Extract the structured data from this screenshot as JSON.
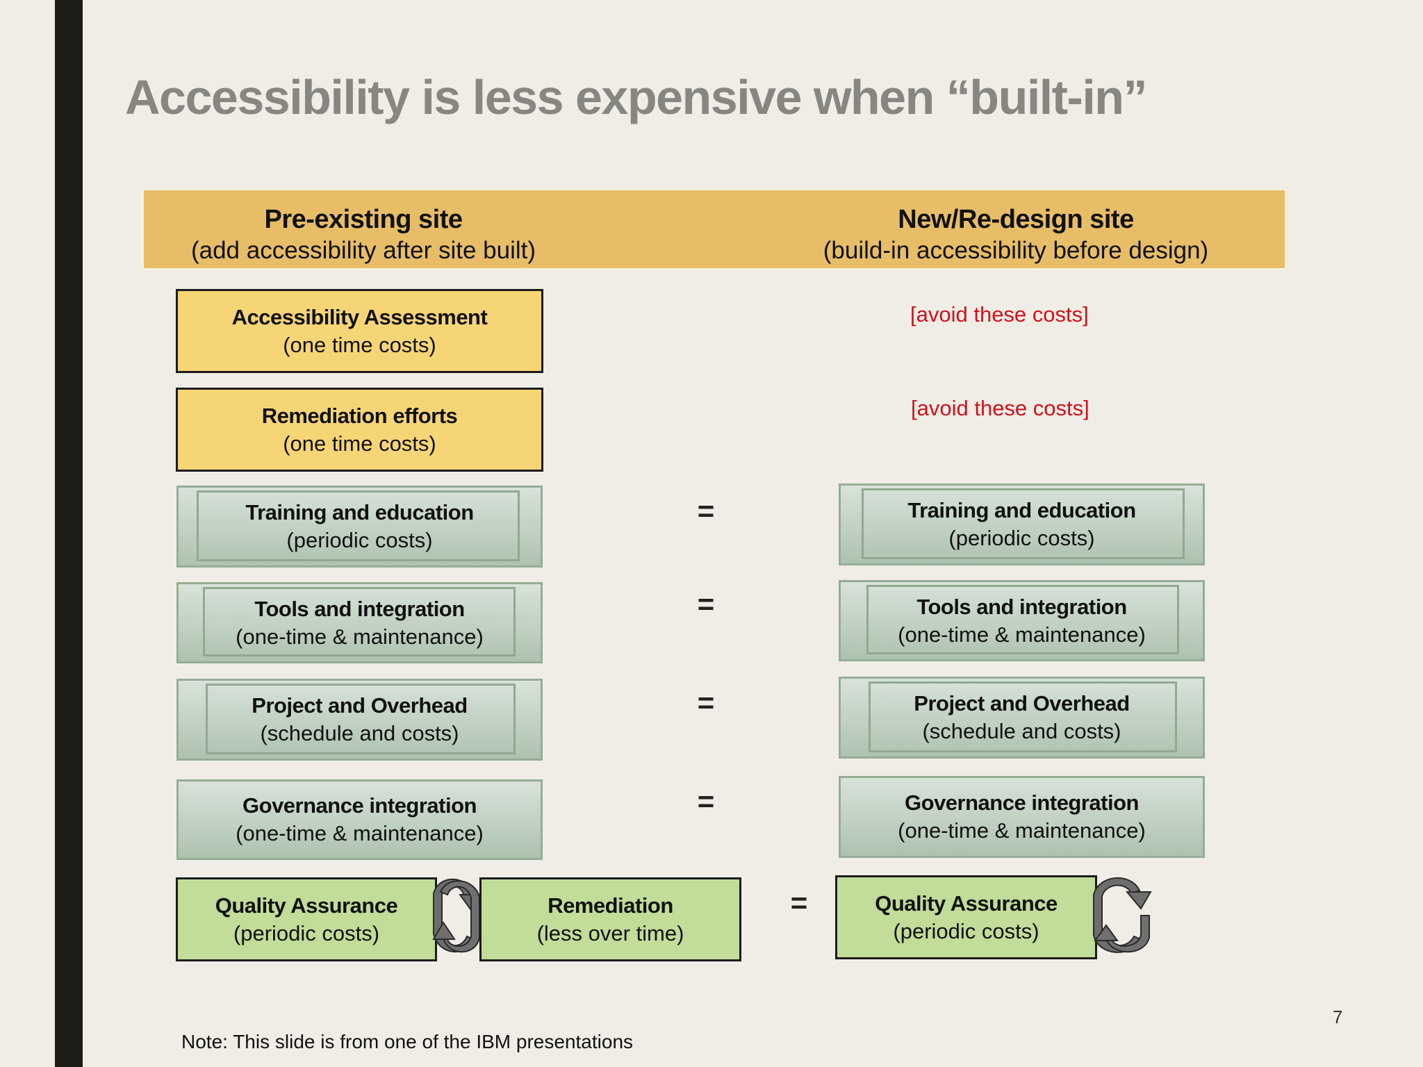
{
  "title": "Accessibility is less expensive when “built-in”",
  "header": {
    "left": {
      "title": "Pre-existing site",
      "subtitle": "(add accessibility after site built)"
    },
    "right": {
      "title": "New/Re-design site",
      "subtitle": "(build-in accessibility before design)"
    }
  },
  "left_column": {
    "assessment": {
      "title": "Accessibility Assessment",
      "subtitle": "(one time costs)"
    },
    "remediation_efforts": {
      "title": "Remediation efforts",
      "subtitle": "(one time costs)"
    },
    "training": {
      "title": "Training and education",
      "subtitle": "(periodic costs)"
    },
    "tools": {
      "title": "Tools and integration",
      "subtitle": "(one-time & maintenance)"
    },
    "project": {
      "title": "Project and Overhead",
      "subtitle": "(schedule and costs)"
    },
    "governance": {
      "title": "Governance integration",
      "subtitle": "(one-time & maintenance)"
    },
    "qa": {
      "title": "Quality Assurance",
      "subtitle": "(periodic costs)"
    },
    "remediation": {
      "title": "Remediation",
      "subtitle": "(less over time)"
    }
  },
  "right_column": {
    "avoid_1": "[avoid these costs]",
    "avoid_2": "[avoid these costs]",
    "training": {
      "title": "Training and education",
      "subtitle": "(periodic costs)"
    },
    "tools": {
      "title": "Tools and integration",
      "subtitle": "(one-time & maintenance)"
    },
    "project": {
      "title": "Project and Overhead",
      "subtitle": "(schedule and costs)"
    },
    "governance": {
      "title": "Governance integration",
      "subtitle": "(one-time & maintenance)"
    },
    "qa": {
      "title": "Quality Assurance",
      "subtitle": "(periodic costs)"
    }
  },
  "equals_sign": "=",
  "icons": {
    "cycle": "cycle-arrows-icon"
  },
  "colors": {
    "header_band": "#e7bd68",
    "yellow_box": "#f6d576",
    "qa_box": "#c2dc99",
    "avoid_text": "#d0111a",
    "title": "#878680"
  },
  "note": "Note: This slide is from one of the IBM presentations",
  "page_number": "7"
}
